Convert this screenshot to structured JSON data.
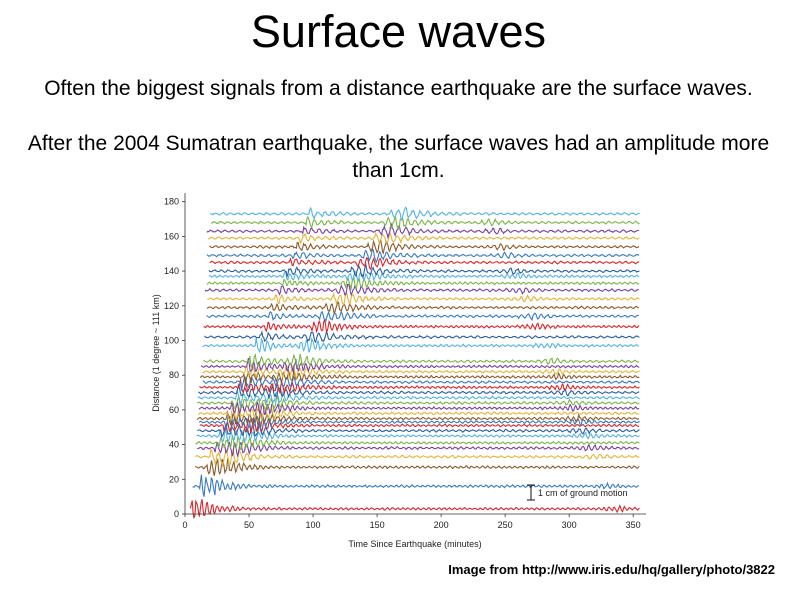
{
  "slide": {
    "title": "Surface waves",
    "paragraph1": "Often the biggest signals from a distance earthquake are the surface waves.",
    "paragraph2": "After the 2004 Sumatran earthquake, the surface waves had an amplitude more than 1cm.",
    "credit": "Image from http://www.iris.edu/hq/gallery/photo/3822"
  },
  "chart_data": {
    "type": "line",
    "title": "",
    "xlabel": "Time Since Earthquake (minutes)",
    "ylabel": "Distance (1 degree ~ 111 km)",
    "xlim": [
      0,
      360
    ],
    "ylim": [
      0,
      185
    ],
    "x_ticks": [
      0,
      50,
      100,
      150,
      200,
      250,
      300,
      350
    ],
    "y_ticks": [
      0,
      20,
      40,
      60,
      80,
      100,
      120,
      140,
      160,
      180
    ],
    "scale_bar_label": "1 cm of ground motion",
    "trace_distances": [
      3,
      16,
      27,
      33,
      38,
      41,
      45,
      48,
      51,
      53,
      55,
      58,
      61,
      64,
      67,
      70,
      73,
      76,
      79,
      82,
      85,
      88,
      97,
      102,
      108,
      114,
      119,
      124,
      129,
      133,
      137,
      140,
      145,
      149,
      154,
      159,
      163,
      168,
      173
    ],
    "colors": [
      "#d9262b",
      "#3a7bbf",
      "#8a5a2b",
      "#e2b53b",
      "#7b3fa0",
      "#7ab648",
      "#55b3e0",
      "#2c5e9e"
    ],
    "grid": false,
    "legend": "none"
  }
}
